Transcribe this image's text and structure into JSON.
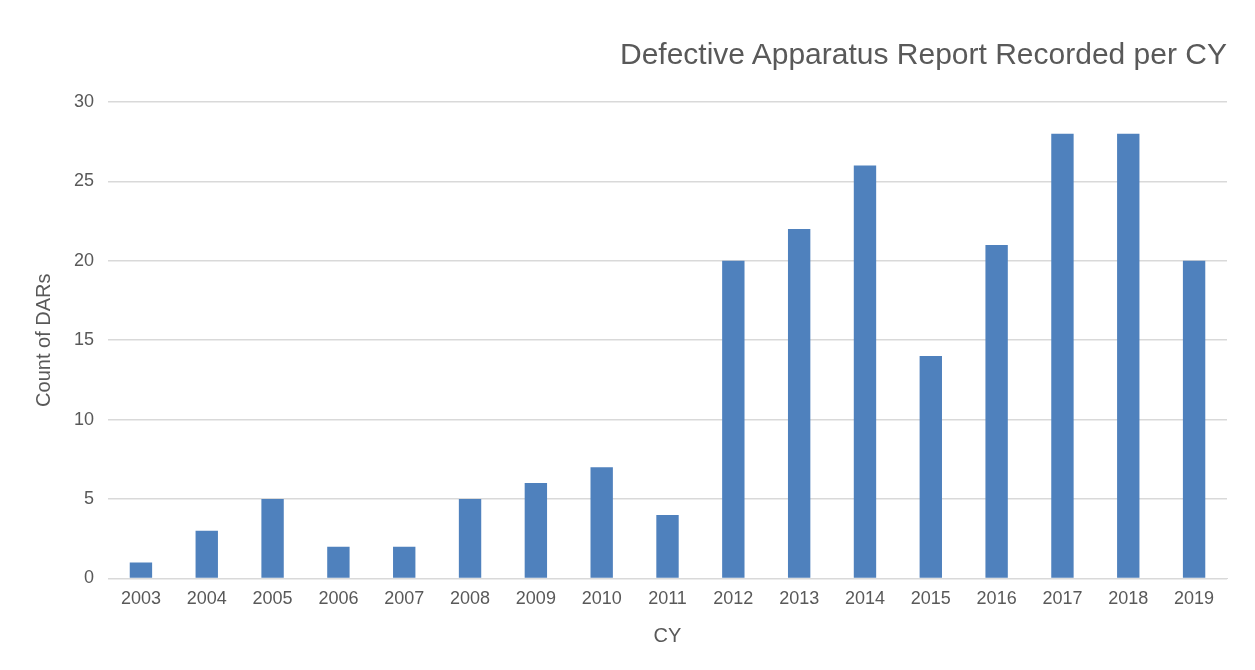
{
  "chart_data": {
    "type": "bar",
    "title": "Defective Apparatus Report Recorded per CY",
    "xlabel": "CY",
    "ylabel": "Count of DARs",
    "categories": [
      "2003",
      "2004",
      "2005",
      "2006",
      "2007",
      "2008",
      "2009",
      "2010",
      "2011",
      "2012",
      "2013",
      "2014",
      "2015",
      "2016",
      "2017",
      "2018",
      "2019"
    ],
    "values": [
      1,
      3,
      5,
      2,
      2,
      5,
      6,
      7,
      4,
      20,
      22,
      26,
      14,
      21,
      28,
      28,
      20
    ],
    "color": "#4f81bd",
    "ylim": [
      0,
      30
    ],
    "yticks": [
      0,
      5,
      10,
      15,
      20,
      25,
      30
    ],
    "grid": "y",
    "legend": false
  }
}
